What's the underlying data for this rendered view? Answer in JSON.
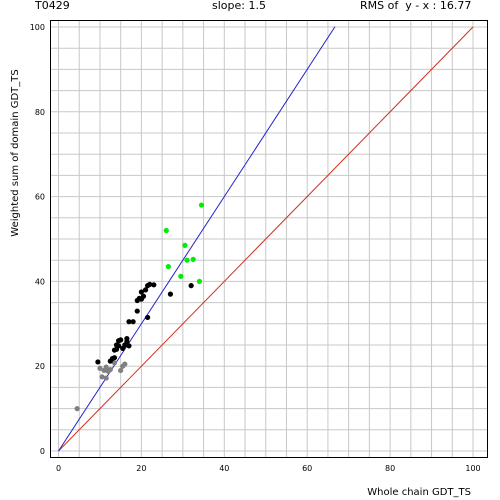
{
  "header": {
    "target": "T0429",
    "slope": "slope: 1.5",
    "rms": "RMS of  y - x : 16.77"
  },
  "chart_data": {
    "type": "scatter",
    "title": "",
    "xlabel": "Whole chain GDT_TS",
    "ylabel": "Weighted sum of domain GDT_TS",
    "xlim": [
      0,
      100
    ],
    "ylim": [
      0,
      100
    ],
    "xticks": [
      0,
      20,
      40,
      60,
      80,
      100
    ],
    "yticks": [
      0,
      20,
      40,
      60,
      80,
      100
    ],
    "grid": true,
    "grid_step": 5,
    "reference_lines": [
      {
        "name": "y = x",
        "slope": 1.0,
        "color": "#d03020"
      },
      {
        "name": "slope 1.5",
        "slope": 1.5,
        "color": "#2020d0",
        "x_end": 66.7
      }
    ],
    "series": [
      {
        "color": "#808080",
        "points": [
          [
            4.5,
            10
          ],
          [
            10,
            19.5
          ],
          [
            10.5,
            17.5
          ],
          [
            11,
            19
          ],
          [
            11.5,
            17.2
          ],
          [
            11.5,
            19.8
          ],
          [
            12,
            18.8
          ],
          [
            12.5,
            19.2
          ],
          [
            13.5,
            20.8
          ],
          [
            15,
            19
          ],
          [
            15.5,
            20
          ],
          [
            16,
            20.5
          ]
        ]
      },
      {
        "color": "#000000",
        "points": [
          [
            9.5,
            21
          ],
          [
            12.5,
            21.2
          ],
          [
            13,
            21.8
          ],
          [
            13.5,
            22
          ],
          [
            13.5,
            23.8
          ],
          [
            14,
            24
          ],
          [
            14,
            25
          ],
          [
            14.5,
            24.8
          ],
          [
            14.5,
            26
          ],
          [
            15,
            26.2
          ],
          [
            15.5,
            24.2
          ],
          [
            16,
            25
          ],
          [
            16.5,
            26.5
          ],
          [
            16.5,
            25.8
          ],
          [
            17,
            24.8
          ],
          [
            17,
            30.5
          ],
          [
            18,
            30.5
          ],
          [
            19,
            33
          ],
          [
            19,
            35.5
          ],
          [
            19.5,
            36
          ],
          [
            20,
            35.8
          ],
          [
            20,
            37.5
          ],
          [
            20.5,
            36.5
          ],
          [
            21,
            38
          ],
          [
            21.5,
            39
          ],
          [
            22,
            39.3
          ],
          [
            21.5,
            31.5
          ],
          [
            23,
            39.2
          ],
          [
            27,
            37
          ],
          [
            32,
            39
          ]
        ]
      },
      {
        "color": "#00ee00",
        "points": [
          [
            26,
            52
          ],
          [
            26.5,
            43.5
          ],
          [
            29.5,
            41.2
          ],
          [
            30.5,
            48.5
          ],
          [
            31,
            45
          ],
          [
            32.5,
            45.2
          ],
          [
            34,
            40
          ],
          [
            34.5,
            58
          ]
        ]
      }
    ]
  }
}
